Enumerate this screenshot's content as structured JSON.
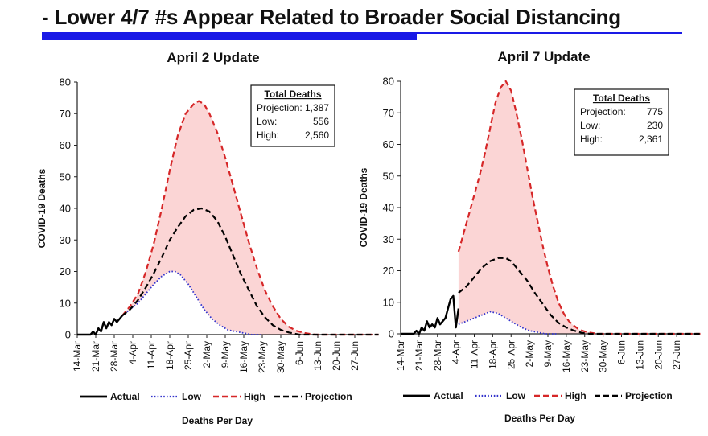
{
  "slide": {
    "title": "- Lower 4/7 #s Appear Related to Broader Social Distancing",
    "accent_color": "#1a1ae6"
  },
  "chart_data": [
    {
      "type": "line",
      "title": "April 2 Update",
      "xlabel": "Deaths Per Day",
      "ylabel": "COVID-19 Deaths",
      "ylim": [
        0,
        80
      ],
      "yticks": [
        0,
        10,
        20,
        30,
        40,
        50,
        60,
        70,
        80
      ],
      "x_tick_labels": [
        "14-Mar",
        "21-Mar",
        "28-Mar",
        "4-Apr",
        "11-Apr",
        "18-Apr",
        "25-Apr",
        "2-May",
        "9-May",
        "16-May",
        "23-May",
        "30-May",
        "6-Jun",
        "13-Jun",
        "20-Jun",
        "27-Jun"
      ],
      "x_unit": "days since 14-Mar (tick every 7 days)",
      "series": [
        {
          "name": "Actual",
          "style": "solid",
          "color": "#000000",
          "points": [
            [
              0,
              0
            ],
            [
              5,
              0
            ],
            [
              6,
              1
            ],
            [
              7,
              0
            ],
            [
              8,
              2
            ],
            [
              9,
              1
            ],
            [
              10,
              4
            ],
            [
              11,
              2
            ],
            [
              12,
              4
            ],
            [
              13,
              3
            ],
            [
              14,
              5
            ],
            [
              15,
              4
            ],
            [
              16,
              5
            ],
            [
              17,
              6
            ]
          ]
        },
        {
          "name": "Low",
          "style": "dotted",
          "color": "#3333cc",
          "points": [
            [
              17,
              6
            ],
            [
              20,
              8
            ],
            [
              23,
              10
            ],
            [
              26,
              13
            ],
            [
              29,
              16
            ],
            [
              32,
              18.5
            ],
            [
              35,
              20
            ],
            [
              37,
              20
            ],
            [
              39,
              19
            ],
            [
              42,
              16
            ],
            [
              45,
              12
            ],
            [
              48,
              8
            ],
            [
              51,
              5
            ],
            [
              54,
              3
            ],
            [
              57,
              1.5
            ],
            [
              60,
              1
            ],
            [
              63,
              0.5
            ],
            [
              66,
              0
            ],
            [
              70,
              0
            ]
          ]
        },
        {
          "name": "High",
          "style": "dashed",
          "color": "#d62728",
          "points": [
            [
              17,
              6
            ],
            [
              20,
              9
            ],
            [
              23,
              13
            ],
            [
              26,
              20
            ],
            [
              29,
              29
            ],
            [
              32,
              40
            ],
            [
              35,
              52
            ],
            [
              38,
              63
            ],
            [
              41,
              70
            ],
            [
              44,
              73
            ],
            [
              46,
              74
            ],
            [
              48,
              73
            ],
            [
              50,
              70
            ],
            [
              53,
              64
            ],
            [
              56,
              56
            ],
            [
              59,
              47
            ],
            [
              62,
              38
            ],
            [
              65,
              29
            ],
            [
              68,
              21
            ],
            [
              71,
              14
            ],
            [
              74,
              9
            ],
            [
              77,
              5
            ],
            [
              80,
              2.5
            ],
            [
              83,
              1.2
            ],
            [
              86,
              0.5
            ],
            [
              90,
              0
            ],
            [
              114,
              0
            ]
          ]
        },
        {
          "name": "Projection",
          "style": "dashed",
          "color": "#000000",
          "points": [
            [
              17,
              6
            ],
            [
              20,
              8
            ],
            [
              23,
              11
            ],
            [
              26,
              15
            ],
            [
              29,
              19.5
            ],
            [
              32,
              24.5
            ],
            [
              35,
              30
            ],
            [
              38,
              34
            ],
            [
              41,
              37.5
            ],
            [
              44,
              39.5
            ],
            [
              47,
              40
            ],
            [
              50,
              39
            ],
            [
              53,
              36
            ],
            [
              56,
              31
            ],
            [
              59,
              25
            ],
            [
              62,
              19
            ],
            [
              65,
              14
            ],
            [
              68,
              9
            ],
            [
              71,
              5.5
            ],
            [
              74,
              3
            ],
            [
              77,
              1.5
            ],
            [
              80,
              0.7
            ],
            [
              84,
              0
            ],
            [
              114,
              0
            ]
          ]
        }
      ],
      "legend": [
        "Actual",
        "Low",
        "High",
        "Projection"
      ],
      "legend_position": "bottom",
      "summary_box": {
        "title": "Total Deaths",
        "rows": [
          [
            "Projection:",
            "1,387"
          ],
          [
            "Low:",
            "556"
          ],
          [
            "High:",
            "2,560"
          ]
        ]
      }
    },
    {
      "type": "line",
      "title": "April 7 Update",
      "xlabel": "Deaths Per Day",
      "ylabel": "COVID-19 Deaths",
      "ylim": [
        0,
        80
      ],
      "yticks": [
        0,
        10,
        20,
        30,
        40,
        50,
        60,
        70,
        80
      ],
      "x_tick_labels": [
        "14-Mar",
        "21-Mar",
        "28-Mar",
        "4-Apr",
        "11-Apr",
        "18-Apr",
        "25-Apr",
        "2-May",
        "9-May",
        "16-May",
        "23-May",
        "30-May",
        "6-Jun",
        "13-Jun",
        "20-Jun",
        "27-Jun"
      ],
      "x_unit": "days since 14-Mar (tick every 7 days)",
      "series": [
        {
          "name": "Actual",
          "style": "solid",
          "color": "#000000",
          "points": [
            [
              0,
              0
            ],
            [
              5,
              0
            ],
            [
              6,
              1
            ],
            [
              7,
              0
            ],
            [
              8,
              2
            ],
            [
              9,
              1
            ],
            [
              10,
              4
            ],
            [
              11,
              2
            ],
            [
              12,
              3
            ],
            [
              13,
              2
            ],
            [
              14,
              5
            ],
            [
              15,
              3
            ],
            [
              16,
              4
            ],
            [
              17,
              5
            ],
            [
              18,
              8
            ],
            [
              19,
              11
            ],
            [
              20,
              12
            ],
            [
              21,
              2
            ],
            [
              22,
              8
            ]
          ]
        },
        {
          "name": "Low",
          "style": "dotted",
          "color": "#3333cc",
          "points": [
            [
              22,
              3
            ],
            [
              25,
              4
            ],
            [
              28,
              5
            ],
            [
              31,
              6
            ],
            [
              34,
              7
            ],
            [
              37,
              6.5
            ],
            [
              40,
              5
            ],
            [
              43,
              3.5
            ],
            [
              46,
              2
            ],
            [
              49,
              1
            ],
            [
              52,
              0.5
            ],
            [
              55,
              0
            ],
            [
              60,
              0
            ]
          ]
        },
        {
          "name": "High",
          "style": "dashed",
          "color": "#d62728",
          "points": [
            [
              22,
              26
            ],
            [
              24,
              32
            ],
            [
              26,
              38
            ],
            [
              28,
              44
            ],
            [
              30,
              50
            ],
            [
              32,
              57
            ],
            [
              34,
              65
            ],
            [
              36,
              73
            ],
            [
              38,
              78
            ],
            [
              40,
              80
            ],
            [
              42,
              77
            ],
            [
              44,
              70
            ],
            [
              46,
              62
            ],
            [
              48,
              53
            ],
            [
              50,
              44
            ],
            [
              52,
              36
            ],
            [
              54,
              28
            ],
            [
              56,
              21
            ],
            [
              58,
              15
            ],
            [
              60,
              10
            ],
            [
              62,
              6.5
            ],
            [
              64,
              4
            ],
            [
              66,
              2.5
            ],
            [
              68,
              1.3
            ],
            [
              71,
              0.5
            ],
            [
              75,
              0
            ],
            [
              114,
              0
            ]
          ]
        },
        {
          "name": "Projection",
          "style": "dashed",
          "color": "#000000",
          "points": [
            [
              22,
              13
            ],
            [
              25,
              15
            ],
            [
              28,
              18
            ],
            [
              31,
              21
            ],
            [
              34,
              23
            ],
            [
              37,
              24
            ],
            [
              40,
              24
            ],
            [
              42,
              23
            ],
            [
              45,
              20
            ],
            [
              48,
              17
            ],
            [
              51,
              13
            ],
            [
              54,
              9.5
            ],
            [
              57,
              6
            ],
            [
              60,
              3.5
            ],
            [
              63,
              2
            ],
            [
              66,
              1
            ],
            [
              69,
              0.3
            ],
            [
              72,
              0
            ],
            [
              114,
              0
            ]
          ]
        }
      ],
      "legend": [
        "Actual",
        "Low",
        "High",
        "Projection"
      ],
      "legend_position": "bottom",
      "summary_box": {
        "title": "Total Deaths",
        "rows": [
          [
            "Projection:",
            "775"
          ],
          [
            "Low:",
            "230"
          ],
          [
            "High:",
            "2,361"
          ]
        ]
      }
    }
  ]
}
